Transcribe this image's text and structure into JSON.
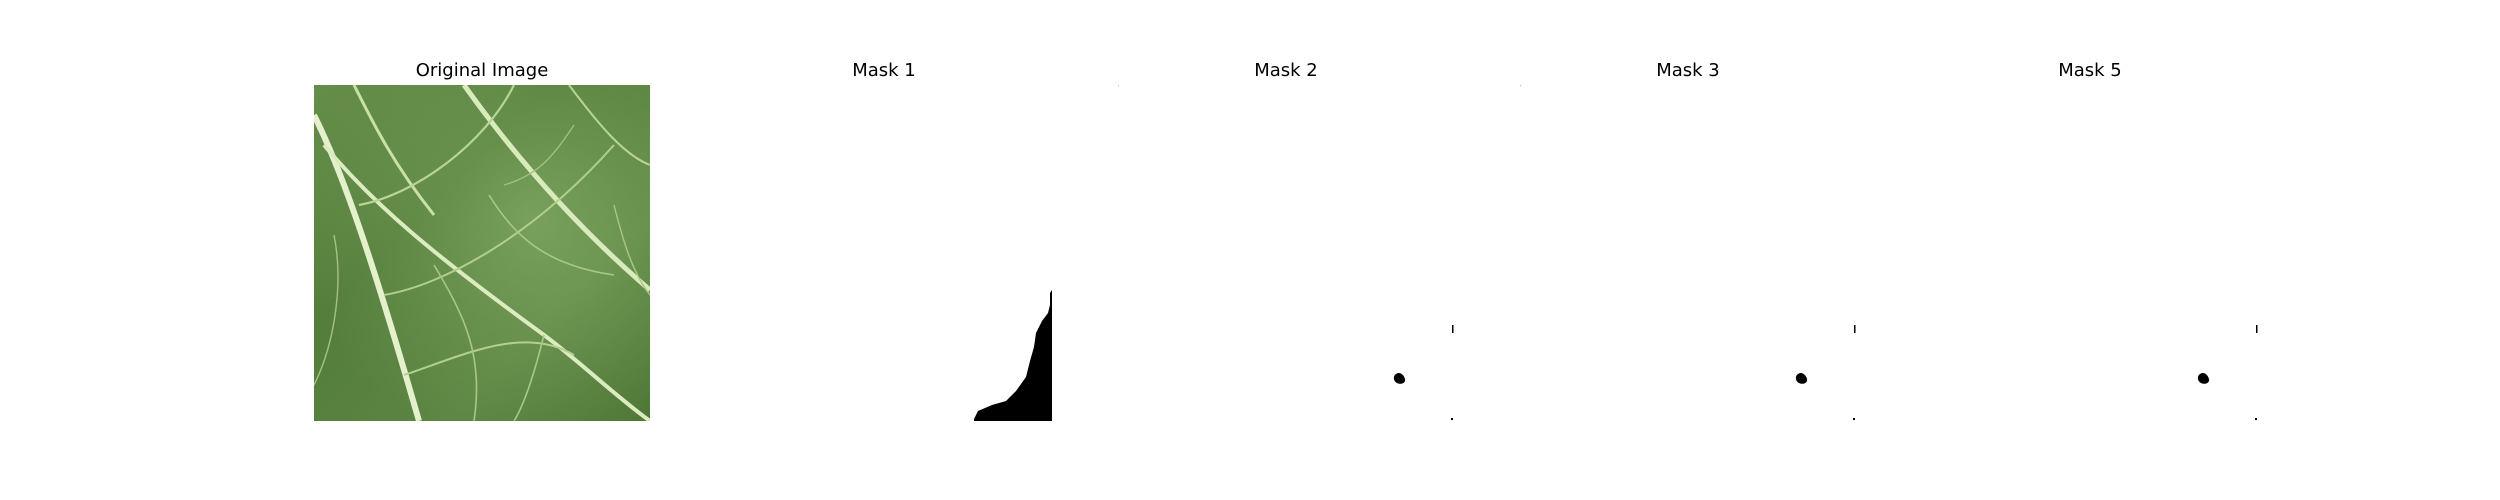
{
  "figure": {
    "panels": [
      {
        "title": "Original Image",
        "kind": "photo",
        "subject": "green-leaf-with-veins"
      },
      {
        "title": "Mask 1",
        "kind": "binary-mask"
      },
      {
        "title": "Mask 2",
        "kind": "binary-mask"
      },
      {
        "title": "Mask 3",
        "kind": "binary-mask"
      },
      {
        "title": "Mask 5",
        "kind": "binary-mask"
      }
    ],
    "colors": {
      "background": "#ffffff",
      "mask_foreground": "#000000",
      "leaf_dark": "#4a7032",
      "leaf_mid": "#6f9652",
      "leaf_light": "#9cbf7d",
      "vein": "#e2f0c6"
    }
  }
}
